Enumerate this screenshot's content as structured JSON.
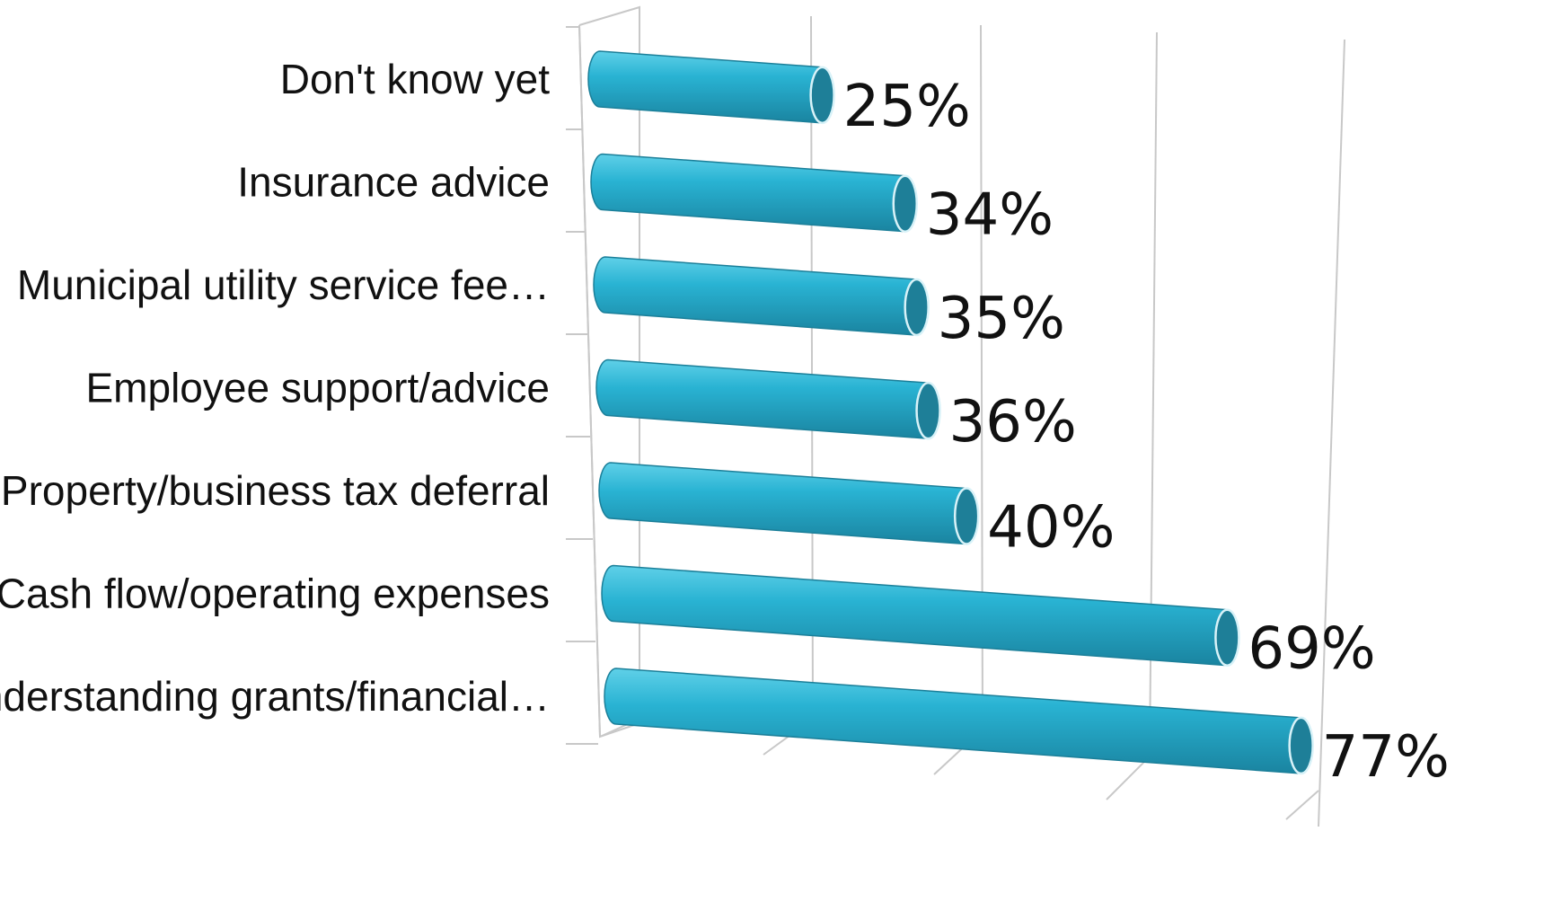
{
  "chart_data": {
    "type": "bar",
    "orientation": "horizontal",
    "style": "3d-cylinder",
    "categories": [
      "Don't know yet",
      "Insurance advice",
      "Municipal utility service fee…",
      "Employee support/advice",
      "Property/business tax deferral",
      "Cash flow/operating expenses",
      "Understanding grants/financial…"
    ],
    "values": [
      25,
      34,
      35,
      36,
      40,
      69,
      77
    ],
    "value_labels": [
      "25%",
      "34%",
      "35%",
      "36%",
      "40%",
      "69%",
      "77%"
    ],
    "title": "",
    "xlabel": "",
    "ylabel": "",
    "xlim": [
      0,
      80
    ],
    "grid": true,
    "legend": "none",
    "colors": {
      "bar": "#29b3d3",
      "bar_highlight": "#5fd0e8",
      "bar_shadow": "#1a84a0",
      "bar_end": "#1e7f98",
      "grid": "#c8c8c8"
    }
  }
}
